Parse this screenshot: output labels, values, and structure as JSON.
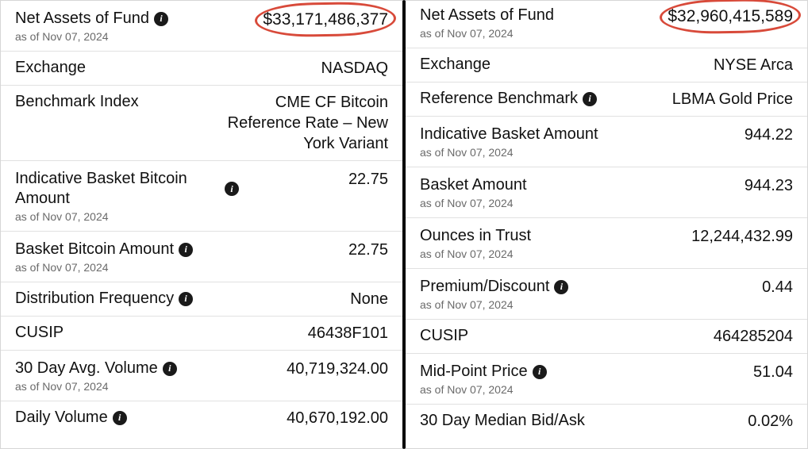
{
  "asOfDate": "as of Nov 07, 2024",
  "left": {
    "rows": [
      {
        "label": "Net Assets of Fund",
        "info": true,
        "date": true,
        "value": "$33,171,486,377",
        "highlight": true
      },
      {
        "label": "Exchange",
        "info": false,
        "date": false,
        "value": "NASDAQ"
      },
      {
        "label": "Benchmark Index",
        "info": false,
        "date": false,
        "value": "CME CF Bitcoin Reference Rate – New York Variant"
      },
      {
        "label": "Indicative Basket Bitcoin Amount",
        "info": true,
        "date": true,
        "value": "22.75"
      },
      {
        "label": "Basket Bitcoin Amount",
        "info": true,
        "date": true,
        "value": "22.75"
      },
      {
        "label": "Distribution Frequency",
        "info": true,
        "date": false,
        "value": "None"
      },
      {
        "label": "CUSIP",
        "info": false,
        "date": false,
        "value": "46438F101"
      },
      {
        "label": "30 Day Avg. Volume",
        "info": true,
        "date": true,
        "value": "40,719,324.00"
      },
      {
        "label": "Daily Volume",
        "info": true,
        "date": false,
        "value": "40,670,192.00",
        "cutoff": true
      }
    ]
  },
  "right": {
    "rows": [
      {
        "label": "Net Assets of Fund",
        "info": false,
        "date": true,
        "value": "$32,960,415,589",
        "highlight": true
      },
      {
        "label": "Exchange",
        "info": false,
        "date": false,
        "value": "NYSE Arca"
      },
      {
        "label": "Reference Benchmark",
        "info": true,
        "date": false,
        "value": "LBMA Gold Price"
      },
      {
        "label": "Indicative Basket Amount",
        "info": false,
        "date": true,
        "value": "944.22"
      },
      {
        "label": "Basket Amount",
        "info": false,
        "date": true,
        "value": "944.23"
      },
      {
        "label": "Ounces in Trust",
        "info": false,
        "date": true,
        "value": "12,244,432.99"
      },
      {
        "label": "Premium/Discount",
        "info": true,
        "date": true,
        "value": "0.44"
      },
      {
        "label": "CUSIP",
        "info": false,
        "date": false,
        "value": "464285204"
      },
      {
        "label": "Mid-Point Price",
        "info": true,
        "date": true,
        "value": "51.04"
      },
      {
        "label": "30 Day Median Bid/Ask",
        "info": false,
        "date": false,
        "value": "0.02%",
        "cutoff": true
      }
    ]
  }
}
